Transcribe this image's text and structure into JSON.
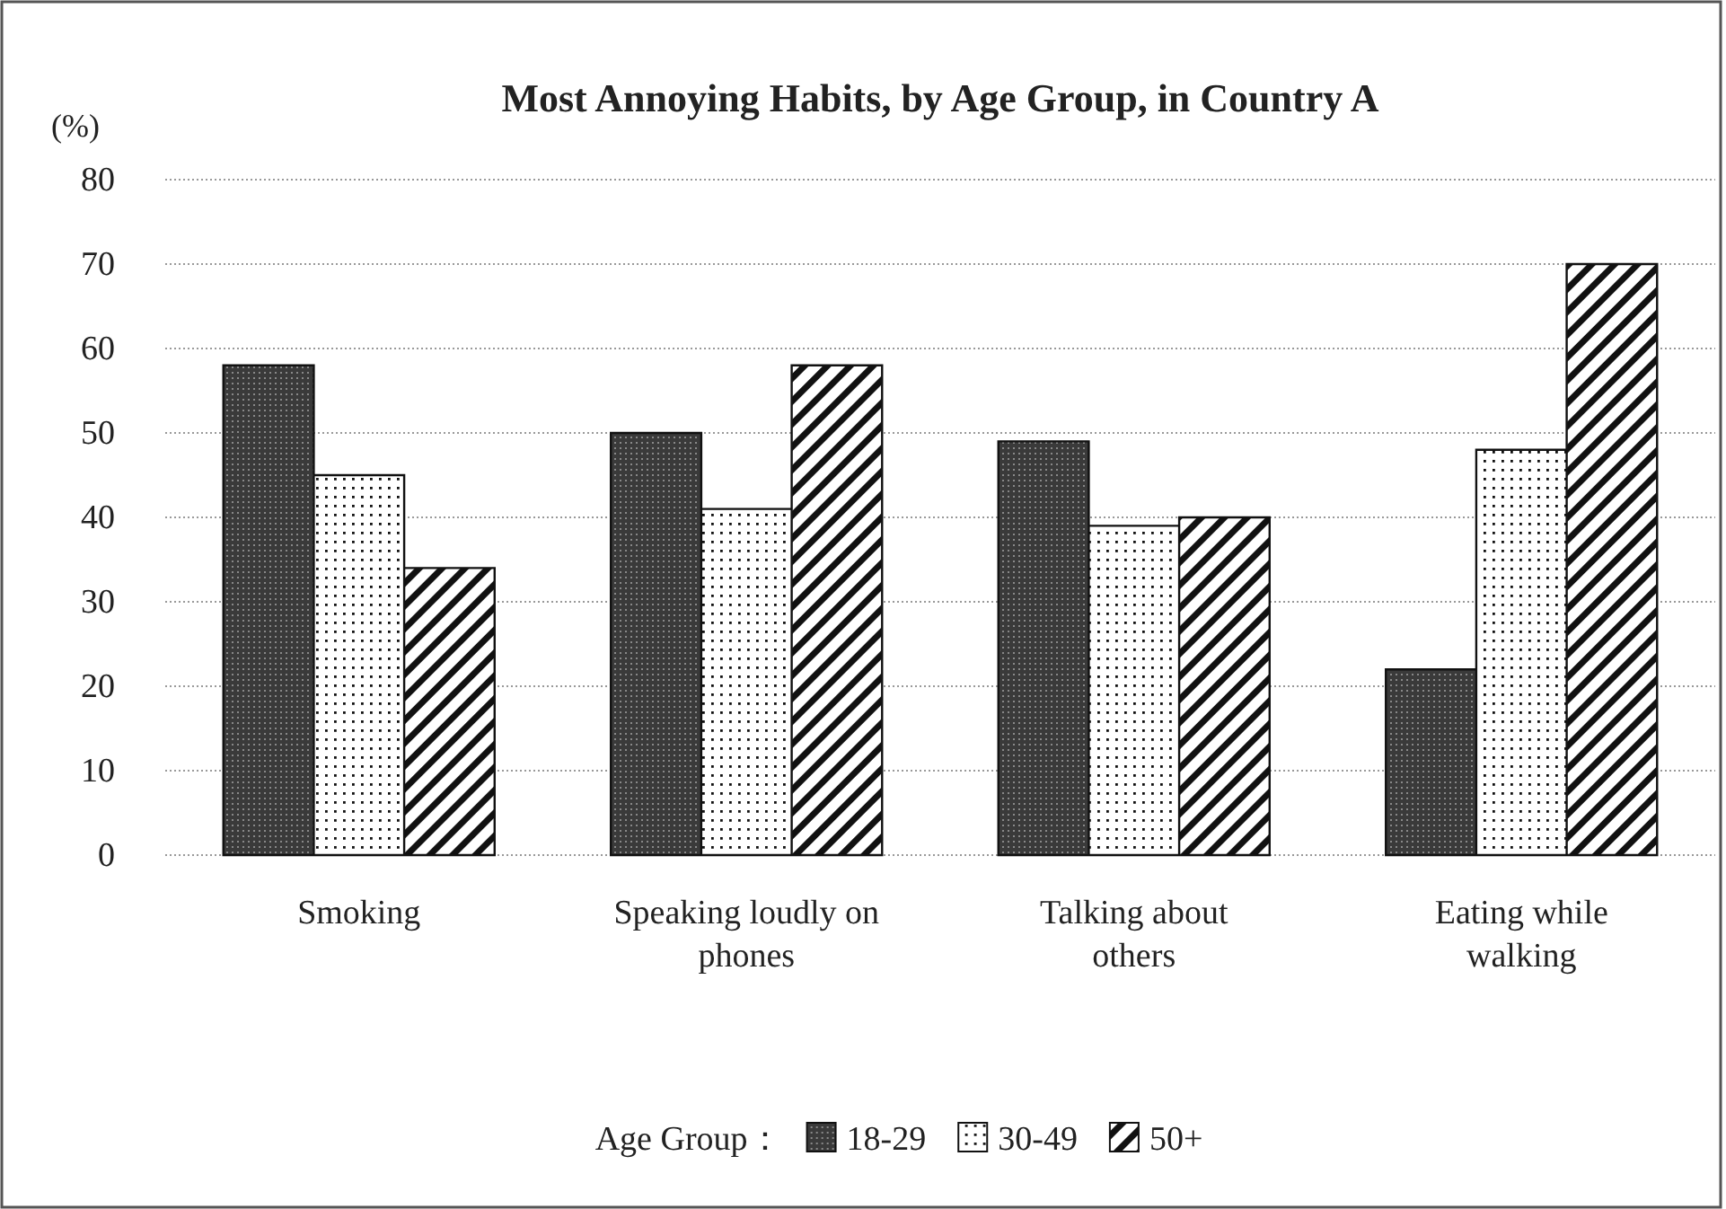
{
  "chart_data": {
    "type": "bar",
    "title": "Most Annoying Habits, by Age Group, in Country A",
    "ylabel": "(%)",
    "legend_title": "Age Group：",
    "categories": [
      "Smoking",
      "Speaking loudly on phones",
      "Talking about others",
      "Eating while walking"
    ],
    "series": [
      {
        "name": "18-29",
        "color": "#3a3a3a",
        "values": [
          58,
          50,
          49,
          22
        ]
      },
      {
        "name": "30-49",
        "color": "#ffffff",
        "values": [
          45,
          41,
          39,
          48
        ]
      },
      {
        "name": "50+",
        "color": "#ffffff",
        "values": [
          34,
          58,
          40,
          70
        ]
      }
    ],
    "ylim": [
      0,
      80
    ],
    "yticks": [
      0,
      10,
      20,
      30,
      40,
      50,
      60,
      70,
      80
    ],
    "grid": "y",
    "legend": "bottom"
  }
}
